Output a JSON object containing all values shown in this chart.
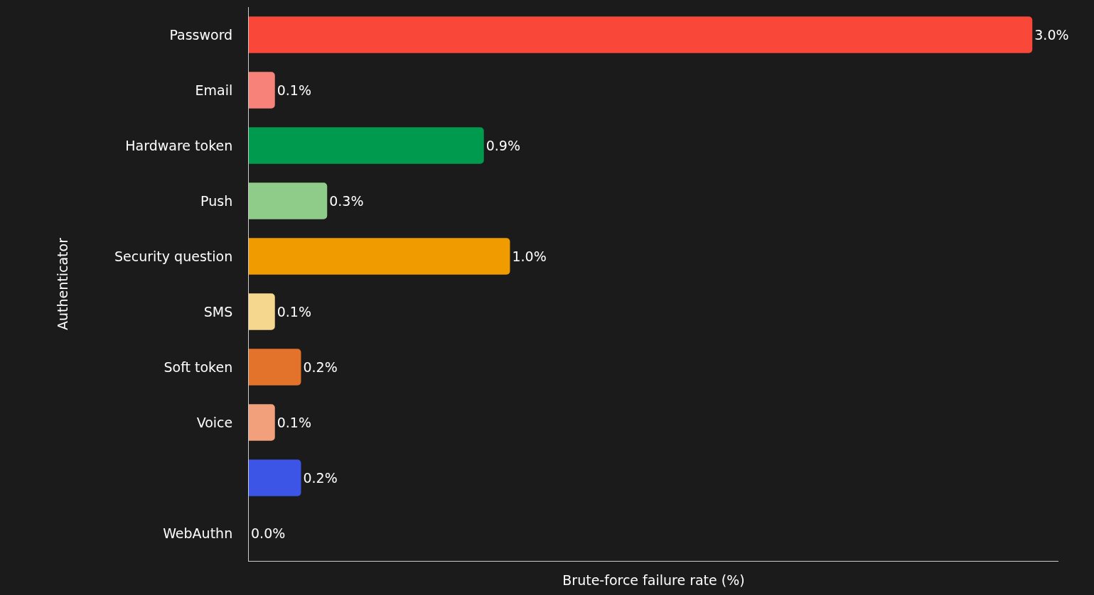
{
  "chart_data": {
    "type": "bar",
    "orientation": "horizontal",
    "xlabel": "Brute-force failure rate (%)",
    "ylabel": "Authenticator",
    "categories": [
      "Password",
      "Email",
      "Hardware token",
      "Push",
      "Security question",
      "SMS",
      "Soft token",
      "Voice",
      null,
      "WebAuthn"
    ],
    "values": [
      3.0,
      0.1,
      0.9,
      0.3,
      1.0,
      0.1,
      0.2,
      0.1,
      0.2,
      0.0
    ],
    "value_labels": [
      "3.0%",
      "0.1%",
      "0.9%",
      "0.3%",
      "1.0%",
      "0.1%",
      "0.2%",
      "0.1%",
      "0.2%",
      "0.0%"
    ],
    "colors": [
      "#f9473a",
      "#f7827a",
      "#009a4e",
      "#8fcc8a",
      "#f09c00",
      "#f5d78e",
      "#e3722b",
      "#f2a07c",
      "#3d55e6",
      "#ffffff"
    ],
    "xlim": [
      0,
      3.1
    ]
  }
}
